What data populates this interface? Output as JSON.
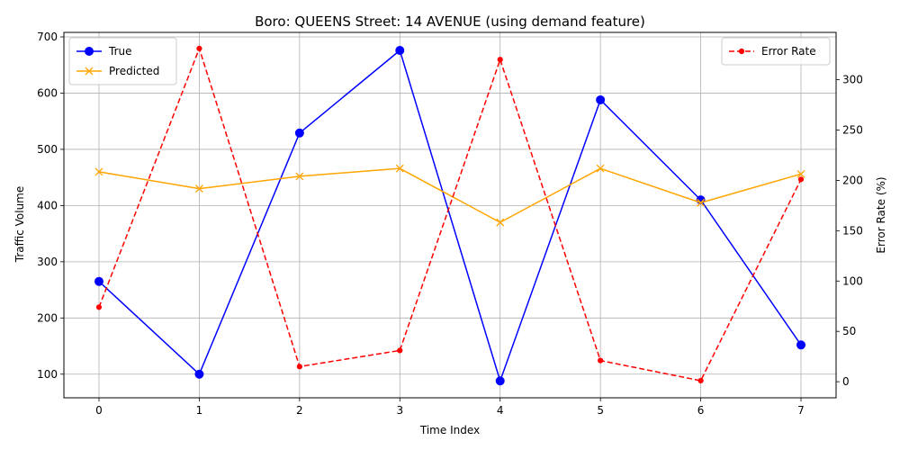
{
  "chart_data": {
    "type": "line",
    "title": "Boro: QUEENS Street: 14 AVENUE (using demand feature)",
    "xlabel": "Time Index",
    "ylabel": "Traffic Volume",
    "ylabel_right": "Error Rate (%)",
    "x": [
      0,
      1,
      2,
      3,
      4,
      5,
      6,
      7
    ],
    "xlim": [
      -0.35,
      7.35
    ],
    "ylim": [
      58,
      708
    ],
    "ylim_right": [
      -16,
      347
    ],
    "x_ticks": [
      "0",
      "1",
      "2",
      "3",
      "4",
      "5",
      "6",
      "7"
    ],
    "y_ticks": [
      "100",
      "200",
      "300",
      "400",
      "500",
      "600",
      "700"
    ],
    "y_ticks_right": [
      "0",
      "50",
      "100",
      "150",
      "200",
      "250",
      "300"
    ],
    "grid": true,
    "series": [
      {
        "name": "True",
        "axis": "left",
        "color": "#0000ff",
        "marker": "circle",
        "linestyle": "solid",
        "values": [
          265,
          100,
          529,
          676,
          88,
          588,
          410,
          152
        ]
      },
      {
        "name": "Predicted",
        "axis": "left",
        "color": "#ffa500",
        "marker": "x",
        "linestyle": "solid",
        "values": [
          460,
          430,
          452,
          466,
          370,
          466,
          405,
          456
        ]
      },
      {
        "name": "Error Rate",
        "axis": "right",
        "color": "#ff0000",
        "marker": "dot",
        "linestyle": "dashed",
        "values": [
          74,
          331,
          15,
          31,
          320,
          21,
          1,
          201
        ]
      }
    ],
    "legend_left": {
      "placement": "top-left",
      "entries": [
        "True",
        "Predicted"
      ]
    },
    "legend_right": {
      "placement": "top-right",
      "entries": [
        "Error Rate"
      ]
    }
  }
}
